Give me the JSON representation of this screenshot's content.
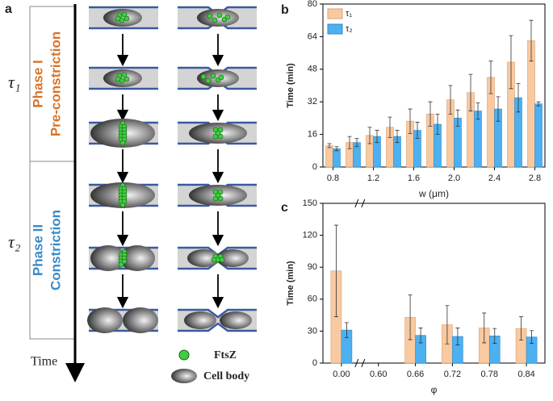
{
  "panel_a": {
    "label": "a",
    "tau1": "τ₁",
    "tau2": "τ₂",
    "phase1_title": "Phase I",
    "phase1_sub": "Pre-constriction",
    "phase2_title": "Phase II",
    "phase2_sub": "Constriction",
    "time": "Time",
    "legend_ftsz": "FtsZ",
    "legend_cell": "Cell body"
  },
  "chart_data": [
    {
      "type": "bar",
      "panel_label": "b",
      "x_label": "w (μm)",
      "y_label": "Time (min)",
      "x": [
        0.8,
        1.0,
        1.2,
        1.4,
        1.6,
        1.8,
        2.0,
        2.2,
        2.4,
        2.6,
        2.8
      ],
      "xlim": [
        0.7,
        2.9
      ],
      "xticks": [
        0.8,
        1.2,
        1.6,
        {
          "value": 2,
          "label": "2.0"
        },
        2.4,
        2.8
      ],
      "ylim": [
        0,
        80
      ],
      "yticks": [
        0,
        16,
        32,
        48,
        64,
        80
      ],
      "legend": "upper left",
      "series": [
        {
          "name": "τ₁",
          "color": "#f9c9a0",
          "values": [
            10.5,
            12,
            15.5,
            19.5,
            22.5,
            26,
            33,
            36.5,
            44,
            51.5,
            62
          ],
          "errors": [
            1,
            3,
            4,
            5,
            6,
            6,
            7,
            9,
            8,
            13,
            10
          ]
        },
        {
          "name": "τ₂",
          "color": "#4db0f0",
          "values": [
            9,
            12,
            15,
            15,
            18,
            21,
            24,
            27.5,
            28.5,
            34,
            31
          ],
          "errors": [
            1,
            2,
            3,
            3,
            4,
            5,
            4,
            4,
            6,
            7,
            1
          ]
        }
      ]
    },
    {
      "type": "bar",
      "panel_label": "c",
      "x_label": "φ",
      "y_label": "Time (min)",
      "categories": [
        "0.00",
        "0.60",
        "0.66",
        "0.72",
        "0.78",
        "0.84"
      ],
      "ylim": [
        0,
        150
      ],
      "yticks": [
        0,
        30,
        60,
        90,
        120,
        150
      ],
      "series": [
        {
          "color": "#f9c9a0",
          "values": [
            86.5,
            null,
            43,
            36,
            33,
            32.5
          ],
          "errors": [
            43,
            null,
            21,
            18,
            14,
            11
          ]
        },
        {
          "color": "#4db0f0",
          "values": [
            31,
            null,
            26,
            25,
            25.5,
            24.5
          ],
          "errors": [
            7,
            null,
            7,
            8,
            7,
            6
          ]
        }
      ]
    }
  ]
}
